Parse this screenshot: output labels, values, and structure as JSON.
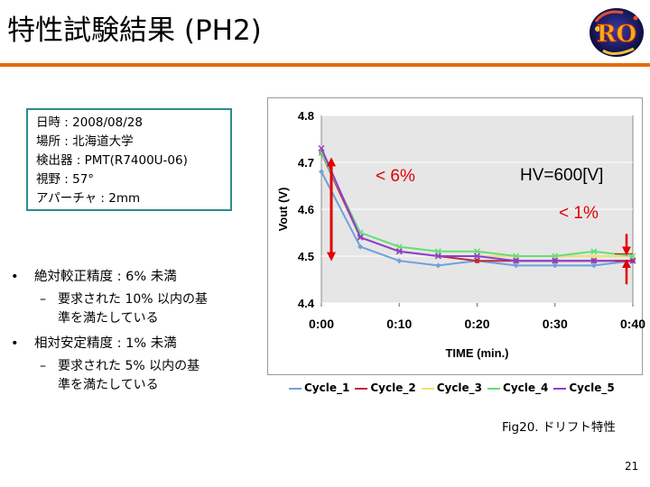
{
  "slide": {
    "title": "特性試験結果 (PH2)",
    "page_number": "21",
    "caption": "Fig20. ドリフト特性",
    "logo_text": "RO"
  },
  "info_box": {
    "lines": [
      "日時 : 2008/08/28",
      "場所 : 北海道大学",
      "検出器 : PMT(R7400U-06)",
      "視野 : 57°",
      "アパーチャ : 2mm"
    ]
  },
  "bullets": [
    {
      "text": "絶対較正精度 : 6% 未満",
      "sub": [
        "要求された 10% 以内の基",
        "準を満たしている"
      ]
    },
    {
      "text": "相対安定精度 : 1% 未満",
      "sub": [
        "要求された 5% 以内の基",
        "準を満たしている"
      ]
    }
  ],
  "colors": {
    "title_rule": "#e36c09",
    "info_border": "#2e8b8b",
    "annotation": "#e00000",
    "plot_bg": "#e6e6e6"
  },
  "chart_data": {
    "type": "line",
    "xlabel": "TIME (min.)",
    "ylabel": "Vout (V)",
    "xlim": [
      0,
      40
    ],
    "ylim": [
      4.4,
      4.8
    ],
    "y_ticks": [
      4.4,
      4.5,
      4.6,
      4.7,
      4.8
    ],
    "y_tick_labels": [
      "4.4",
      "4.5",
      "4.6",
      "4.7",
      "4.8"
    ],
    "x_ticks": [
      0,
      10,
      20,
      30,
      40
    ],
    "x_tick_labels": [
      "0:00",
      "0:10",
      "0:20",
      "0:30",
      "0:40"
    ],
    "x": [
      0,
      5,
      10,
      15,
      20,
      25,
      30,
      35,
      40
    ],
    "series": [
      {
        "name": "Cycle_1",
        "color": "#6fa0dc",
        "marker": "diamond",
        "values": [
          4.68,
          4.52,
          4.49,
          4.48,
          4.49,
          4.48,
          4.48,
          4.48,
          4.49
        ]
      },
      {
        "name": "Cycle_2",
        "color": "#c0283c",
        "marker": "square",
        "values": [
          4.72,
          4.54,
          4.51,
          4.5,
          4.49,
          4.49,
          4.49,
          4.49,
          4.49
        ]
      },
      {
        "name": "Cycle_3",
        "color": "#f0e070",
        "marker": "triangle",
        "values": [
          4.73,
          4.54,
          4.51,
          4.5,
          4.5,
          4.5,
          4.5,
          4.5,
          4.5
        ]
      },
      {
        "name": "Cycle_4",
        "color": "#66dd77",
        "marker": "x",
        "values": [
          4.72,
          4.55,
          4.52,
          4.51,
          4.51,
          4.5,
          4.5,
          4.51,
          4.5
        ]
      },
      {
        "name": "Cycle_5",
        "color": "#8a3fd0",
        "marker": "x",
        "values": [
          4.73,
          4.54,
          4.51,
          4.5,
          4.5,
          4.49,
          4.49,
          4.49,
          4.49
        ]
      }
    ],
    "annotations": {
      "abs_label": "< 6%",
      "rel_label": "< 1%",
      "hv_label": "HV=600[V]"
    },
    "grid": true,
    "legend_position": "bottom"
  }
}
